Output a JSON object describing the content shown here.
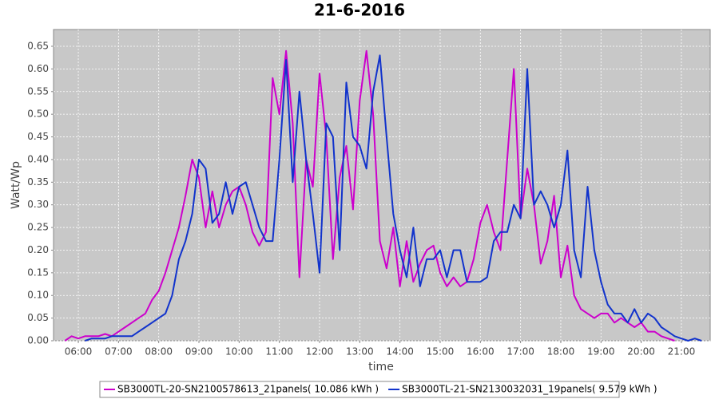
{
  "chart_data": {
    "type": "line",
    "title": "21-6-2016",
    "xlabel": "time",
    "ylabel": "Watt/Wp",
    "x": [
      "05:40",
      "05:50",
      "06:00",
      "06:10",
      "06:20",
      "06:30",
      "06:40",
      "06:50",
      "07:00",
      "07:10",
      "07:20",
      "07:30",
      "07:40",
      "07:50",
      "08:00",
      "08:10",
      "08:20",
      "08:30",
      "08:40",
      "08:50",
      "09:00",
      "09:10",
      "09:20",
      "09:30",
      "09:40",
      "09:50",
      "10:00",
      "10:10",
      "10:20",
      "10:30",
      "10:40",
      "10:50",
      "11:00",
      "11:10",
      "11:20",
      "11:30",
      "11:40",
      "11:50",
      "12:00",
      "12:10",
      "12:20",
      "12:30",
      "12:40",
      "12:50",
      "13:00",
      "13:10",
      "13:20",
      "13:30",
      "13:40",
      "13:50",
      "14:00",
      "14:10",
      "14:20",
      "14:30",
      "14:40",
      "14:50",
      "15:00",
      "15:10",
      "15:20",
      "15:30",
      "15:40",
      "15:50",
      "16:00",
      "16:10",
      "16:20",
      "16:30",
      "16:40",
      "16:50",
      "17:00",
      "17:10",
      "17:20",
      "17:30",
      "17:40",
      "17:50",
      "18:00",
      "18:10",
      "18:20",
      "18:30",
      "18:40",
      "18:50",
      "19:00",
      "19:10",
      "19:20",
      "19:30",
      "19:40",
      "19:50",
      "20:00",
      "20:10",
      "20:20",
      "20:30",
      "20:40",
      "20:50",
      "21:00",
      "21:10",
      "21:20",
      "21:30"
    ],
    "series": [
      {
        "name": "SB3000TL-20-SN2100578613_21panels( 10.086 kWh )",
        "color": "#cc00cc",
        "values": [
          0,
          0.01,
          0.005,
          0.01,
          0.01,
          0.01,
          0.015,
          0.01,
          0.02,
          0.03,
          0.04,
          0.05,
          0.06,
          0.09,
          0.11,
          0.15,
          0.2,
          0.25,
          0.32,
          0.4,
          0.36,
          0.25,
          0.33,
          0.25,
          0.3,
          0.33,
          0.34,
          0.3,
          0.24,
          0.21,
          0.24,
          0.58,
          0.5,
          0.64,
          0.48,
          0.14,
          0.4,
          0.34,
          0.59,
          0.45,
          0.18,
          0.36,
          0.43,
          0.29,
          0.53,
          0.64,
          0.5,
          0.22,
          0.16,
          0.25,
          0.12,
          0.22,
          0.13,
          0.17,
          0.2,
          0.21,
          0.15,
          0.12,
          0.14,
          0.12,
          0.13,
          0.18,
          0.26,
          0.3,
          0.24,
          0.2,
          0.4,
          0.6,
          0.27,
          0.38,
          0.3,
          0.17,
          0.22,
          0.32,
          0.14,
          0.21,
          0.1,
          0.07,
          0.06,
          0.05,
          0.06,
          0.06,
          0.04,
          0.05,
          0.04,
          0.03,
          0.04,
          0.02,
          0.02,
          0.01,
          0.005,
          0,
          null,
          null,
          null,
          null
        ]
      },
      {
        "name": "SB3000TL-21-SN2130032031_19panels( 9.579 kWh )",
        "color": "#1133cc",
        "values": [
          null,
          null,
          null,
          0,
          0.005,
          0.005,
          0.005,
          0.01,
          0.01,
          0.01,
          0.01,
          0.02,
          0.03,
          0.04,
          0.05,
          0.06,
          0.1,
          0.18,
          0.22,
          0.28,
          0.4,
          0.38,
          0.26,
          0.28,
          0.35,
          0.28,
          0.34,
          0.35,
          0.3,
          0.25,
          0.22,
          0.22,
          0.4,
          0.62,
          0.35,
          0.55,
          0.4,
          0.28,
          0.15,
          0.48,
          0.45,
          0.2,
          0.57,
          0.45,
          0.43,
          0.38,
          0.55,
          0.63,
          0.45,
          0.28,
          0.2,
          0.14,
          0.25,
          0.12,
          0.18,
          0.18,
          0.2,
          0.14,
          0.2,
          0.2,
          0.13,
          0.13,
          0.13,
          0.14,
          0.22,
          0.24,
          0.24,
          0.3,
          0.27,
          0.6,
          0.3,
          0.33,
          0.3,
          0.25,
          0.3,
          0.42,
          0.2,
          0.14,
          0.34,
          0.2,
          0.13,
          0.08,
          0.06,
          0.06,
          0.04,
          0.07,
          0.04,
          0.06,
          0.05,
          0.03,
          0.02,
          0.01,
          0.005,
          0,
          0.005,
          0
        ]
      }
    ],
    "xlim": [
      "05:23",
      "21:43"
    ],
    "xticks": [
      "06:00",
      "07:00",
      "08:00",
      "09:00",
      "10:00",
      "11:00",
      "12:00",
      "13:00",
      "14:00",
      "15:00",
      "16:00",
      "17:00",
      "18:00",
      "19:00",
      "20:00",
      "21:00"
    ],
    "ylim": [
      0,
      0.687
    ],
    "yticks": [
      {
        "value": 0,
        "label": "0.00"
      },
      0.05,
      {
        "value": 0.1,
        "label": "0.10"
      },
      0.15,
      {
        "value": 0.2,
        "label": "0.20"
      },
      0.25,
      {
        "value": 0.3,
        "label": "0.30"
      },
      0.35,
      {
        "value": 0.4,
        "label": "0.40"
      },
      0.45,
      {
        "value": 0.5,
        "label": "0.50"
      },
      0.55,
      {
        "value": 0.6,
        "label": "0.60"
      },
      0.65
    ],
    "grid": true,
    "legend": "bottom"
  }
}
